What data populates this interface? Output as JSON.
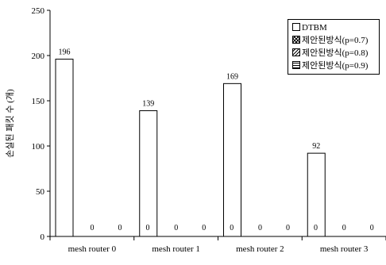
{
  "chart_data": {
    "type": "bar",
    "title": "",
    "xlabel": "",
    "ylabel": "손실된 패킷 수 (개)",
    "ylim": [
      0,
      250
    ],
    "yticks": [
      "0",
      "50",
      "100",
      "150",
      "200",
      "250"
    ],
    "categories": [
      "mesh router 0",
      "mesh router 1",
      "mesh router 2",
      "mesh router 3"
    ],
    "series": [
      {
        "name": "DTBM",
        "values": [
          196,
          139,
          169,
          92
        ],
        "pattern": "blank"
      },
      {
        "name": "제안된방식(p=0.7)",
        "values": [
          0,
          0,
          0,
          0
        ],
        "pattern": "crosshatch"
      },
      {
        "name": "제안된방식(p=0.8)",
        "values": [
          0,
          0,
          0,
          0
        ],
        "pattern": "diagonal"
      },
      {
        "name": "제안된방식(p=0.9)",
        "values": [
          0,
          0,
          0,
          0
        ],
        "pattern": "horizontal"
      }
    ],
    "data_labels": [
      [
        "196",
        "0",
        "0",
        "0"
      ],
      [
        "139",
        "0",
        "0",
        "0"
      ],
      [
        "169",
        "0",
        "0",
        "0"
      ],
      [
        "92",
        "0",
        "0",
        "0"
      ]
    ],
    "legend_position": "top-right",
    "grid": false
  }
}
